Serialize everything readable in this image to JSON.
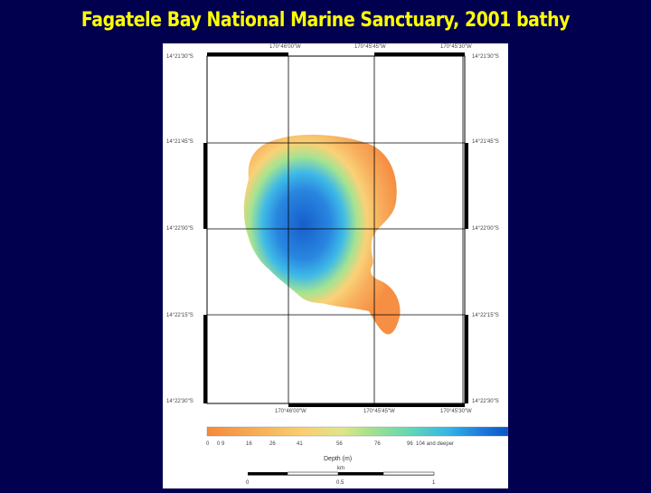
{
  "title": "Fagatele Bay National Marine Sanctuary, 2001 bathy",
  "map": {
    "lon_labels": [
      "170°46'00\"W",
      "170°45'45\"W",
      "170°45'30\"W"
    ],
    "lat_labels": [
      "14°21'30\"S",
      "14°21'45\"S",
      "14°22'00\"S",
      "14°22'15\"S",
      "14°22'30\"S"
    ]
  },
  "legend": {
    "title": "Depth (m)",
    "ticks": [
      "0",
      "0 9",
      "16",
      "26",
      "41",
      "56",
      "76",
      "96",
      "104 and deeper"
    ],
    "colors": [
      "#f5893a",
      "#f7ab55",
      "#f9cf70",
      "#dfe58a",
      "#9fe28c",
      "#5fd6b8",
      "#34b6e6",
      "#1e80de",
      "#0a55c8"
    ]
  },
  "scale_bar": {
    "unit": "km",
    "labels": [
      "0",
      "0.5",
      "1"
    ]
  }
}
